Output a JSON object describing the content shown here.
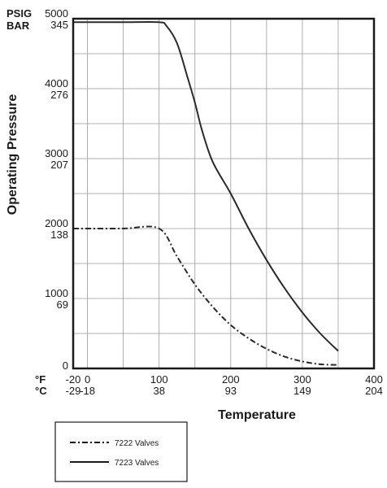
{
  "chart_data": {
    "type": "line",
    "title": "",
    "xlabel": "Temperature",
    "ylabel": "Operating Pressure",
    "x_unit_primary": "°F",
    "x_unit_secondary": "°C",
    "y_unit_primary": "PSIG",
    "y_unit_secondary": "BAR",
    "xlim": [
      -20,
      400
    ],
    "ylim": [
      0,
      5000
    ],
    "grid": true,
    "legend_position": "bottom-left (below plot)",
    "x_ticks": [
      {
        "value": -20,
        "f": "-20",
        "c": "-29"
      },
      {
        "value": 0,
        "f": "0",
        "c": "-18"
      },
      {
        "value": 100,
        "f": "100",
        "c": "38"
      },
      {
        "value": 200,
        "f": "200",
        "c": "93"
      },
      {
        "value": 300,
        "f": "300",
        "c": "149"
      },
      {
        "value": 400,
        "f": "400",
        "c": "204"
      }
    ],
    "y_ticks": [
      {
        "value": 0,
        "psig": "0",
        "bar": ""
      },
      {
        "value": 1000,
        "psig": "1000",
        "bar": "69"
      },
      {
        "value": 2000,
        "psig": "2000",
        "bar": "138"
      },
      {
        "value": 3000,
        "psig": "3000",
        "bar": "207"
      },
      {
        "value": 4000,
        "psig": "4000",
        "bar": "276"
      },
      {
        "value": 5000,
        "psig": "5000",
        "bar": "345"
      }
    ],
    "series": [
      {
        "name": "7222 Valves",
        "style": "dash-dot",
        "x": [
          -20,
          0,
          50,
          100,
          125,
          150,
          175,
          200,
          225,
          250,
          275,
          300,
          325,
          350
        ],
        "y": [
          2000,
          2000,
          2000,
          2000,
          1600,
          1200,
          880,
          620,
          430,
          280,
          170,
          100,
          60,
          50
        ]
      },
      {
        "name": "7223 Valves",
        "style": "solid",
        "x": [
          -20,
          0,
          50,
          100,
          110,
          125,
          140,
          150,
          160,
          175,
          200,
          225,
          250,
          275,
          300,
          325,
          350
        ],
        "y": [
          4950,
          4950,
          4950,
          4950,
          4900,
          4650,
          4150,
          3800,
          3400,
          2950,
          2500,
          2000,
          1550,
          1150,
          800,
          500,
          250
        ]
      }
    ]
  },
  "colors": {
    "line": "#2a2a2a",
    "grid": "#9a9a9a",
    "frame": "#1a1a1a"
  }
}
